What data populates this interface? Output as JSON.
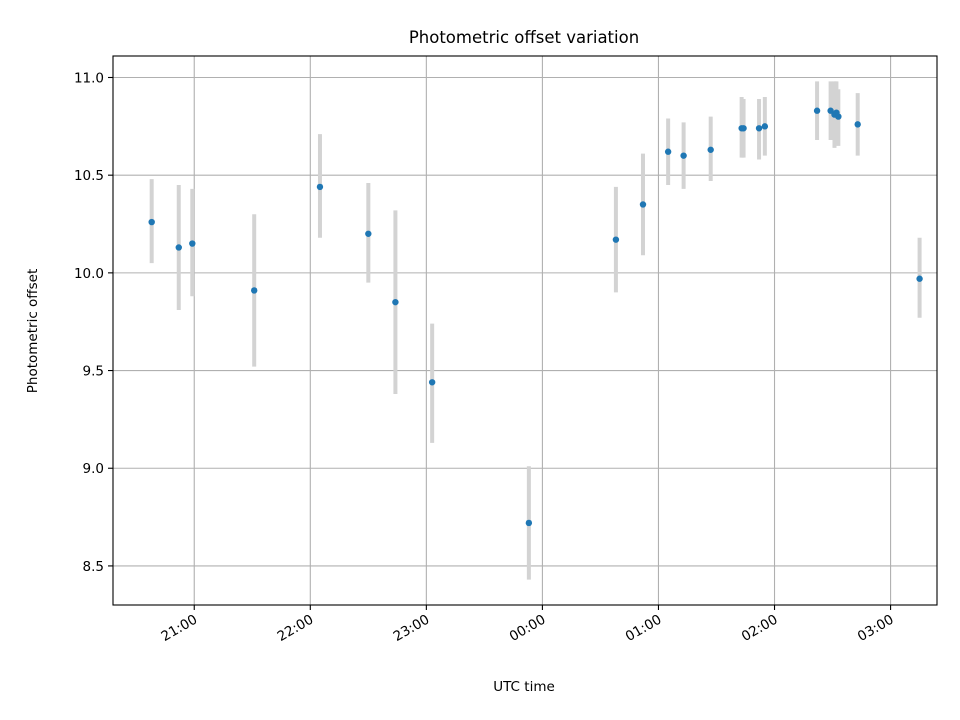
{
  "chart_data": {
    "type": "scatter",
    "title": "Photometric offset variation",
    "xlabel": "UTC time",
    "ylabel": "Photometric offset",
    "x_tick_labels": [
      "21:00",
      "22:00",
      "23:00",
      "00:00",
      "01:00",
      "02:00",
      "03:00"
    ],
    "x_tick_times": [
      "21:00",
      "22:00",
      "23:00",
      "00:00",
      "01:00",
      "02:00",
      "03:00"
    ],
    "y_ticks": [
      8.5,
      9.0,
      9.5,
      10.0,
      10.5,
      11.0
    ],
    "y_tick_labels": [
      "8.5",
      "9.0",
      "9.5",
      "10.0",
      "10.5",
      "11.0"
    ],
    "xlim": [
      "20:18",
      "03:24"
    ],
    "ylim": [
      8.3,
      11.11
    ],
    "grid": true,
    "colors": {
      "points": "#1f77b4",
      "error_bars": "#d3d3d3"
    },
    "points": [
      {
        "x": "20:38",
        "y": 10.26,
        "yerr": [
          10.05,
          10.48
        ]
      },
      {
        "x": "20:52",
        "y": 10.13,
        "yerr": [
          9.81,
          10.45
        ]
      },
      {
        "x": "20:59",
        "y": 10.15,
        "yerr": [
          9.88,
          10.43
        ]
      },
      {
        "x": "21:31",
        "y": 9.91,
        "yerr": [
          9.52,
          10.3
        ]
      },
      {
        "x": "22:05",
        "y": 10.44,
        "yerr": [
          10.18,
          10.71
        ]
      },
      {
        "x": "22:30",
        "y": 10.2,
        "yerr": [
          9.95,
          10.46
        ]
      },
      {
        "x": "22:44",
        "y": 9.85,
        "yerr": [
          9.38,
          10.32
        ]
      },
      {
        "x": "23:03",
        "y": 9.44,
        "yerr": [
          9.13,
          9.74
        ]
      },
      {
        "x": "23:53",
        "y": 8.72,
        "yerr": [
          8.43,
          9.01
        ]
      },
      {
        "x": "00:38",
        "y": 10.17,
        "yerr": [
          9.9,
          10.44
        ]
      },
      {
        "x": "00:52",
        "y": 10.35,
        "yerr": [
          10.09,
          10.61
        ]
      },
      {
        "x": "01:05",
        "y": 10.62,
        "yerr": [
          10.45,
          10.79
        ]
      },
      {
        "x": "01:13",
        "y": 10.6,
        "yerr": [
          10.43,
          10.77
        ]
      },
      {
        "x": "01:27",
        "y": 10.63,
        "yerr": [
          10.47,
          10.8
        ]
      },
      {
        "x": "01:43",
        "y": 10.74,
        "yerr": [
          10.59,
          10.9
        ]
      },
      {
        "x": "01:44",
        "y": 10.74,
        "yerr": [
          10.59,
          10.89
        ]
      },
      {
        "x": "01:52",
        "y": 10.74,
        "yerr": [
          10.58,
          10.89
        ]
      },
      {
        "x": "01:55",
        "y": 10.75,
        "yerr": [
          10.6,
          10.9
        ]
      },
      {
        "x": "02:22",
        "y": 10.83,
        "yerr": [
          10.68,
          10.98
        ]
      },
      {
        "x": "02:29",
        "y": 10.83,
        "yerr": [
          10.68,
          10.98
        ]
      },
      {
        "x": "02:31",
        "y": 10.81,
        "yerr": [
          10.64,
          10.98
        ]
      },
      {
        "x": "02:32",
        "y": 10.82,
        "yerr": [
          10.66,
          10.98
        ]
      },
      {
        "x": "02:33",
        "y": 10.8,
        "yerr": [
          10.65,
          10.94
        ]
      },
      {
        "x": "02:43",
        "y": 10.76,
        "yerr": [
          10.6,
          10.92
        ]
      },
      {
        "x": "03:15",
        "y": 9.97,
        "yerr": [
          9.77,
          10.18
        ]
      }
    ]
  }
}
